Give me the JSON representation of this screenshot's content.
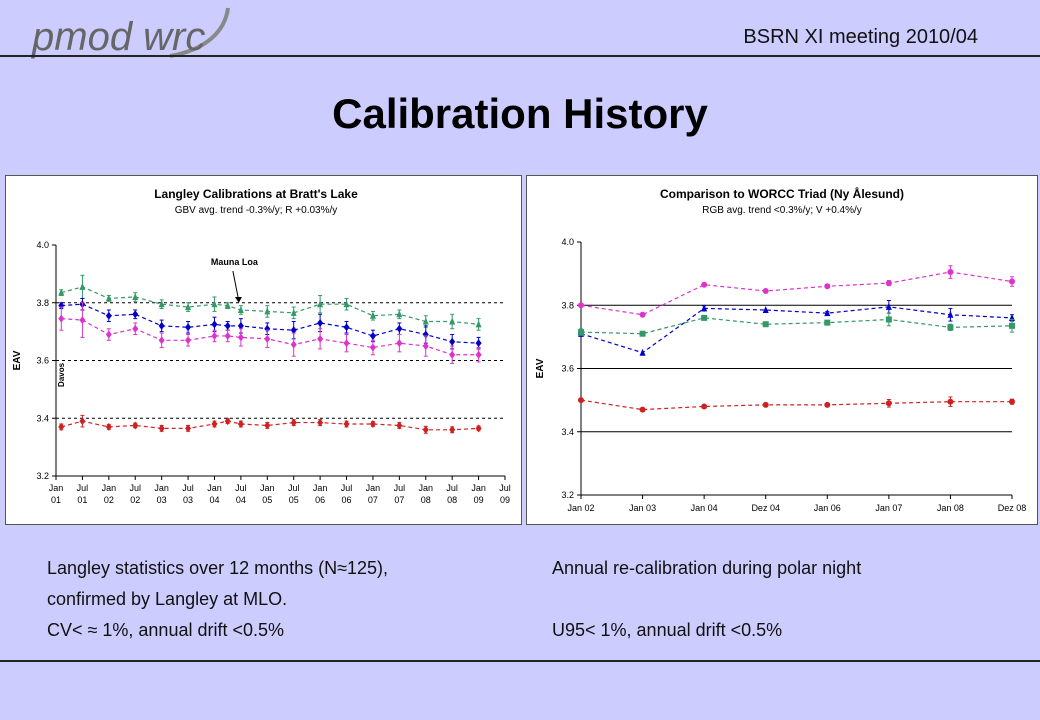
{
  "header": {
    "logo_text": "pmod wrc",
    "meeting": "BSRN XI meeting  2010/04"
  },
  "page_title": "Calibration History",
  "captions": {
    "left": [
      "Langley statistics over 12 months (N≈125),",
      "confirmed by Langley at MLO.",
      "CV< ≈ 1%, annual drift <0.5%"
    ],
    "right": [
      "Annual re-calibration during polar night",
      "U95< 1%, annual drift <0.5%"
    ]
  },
  "chart_data": [
    {
      "type": "line",
      "title": "Langley Calibrations at Bratt's Lake",
      "subtitle": "GBV avg. trend -0.3%/y; R +0.03%/y",
      "ylabel": "EAV",
      "ylim": [
        3.2,
        4.0
      ],
      "yticks": [
        "3.2",
        "3.4",
        "3.6",
        "3.8",
        "4.0"
      ],
      "ytick_values": [
        3.2,
        3.4,
        3.6,
        3.8,
        4.0
      ],
      "gridlines": [
        3.4,
        3.6,
        3.8
      ],
      "x_tick_labels": [
        [
          "Jan",
          "01"
        ],
        [
          "Jul",
          "01"
        ],
        [
          "Jan",
          "02"
        ],
        [
          "Jul",
          "02"
        ],
        [
          "Jan",
          "03"
        ],
        [
          "Jul",
          "03"
        ],
        [
          "Jan",
          "04"
        ],
        [
          "Jul",
          "04"
        ],
        [
          "Jan",
          "05"
        ],
        [
          "Jul",
          "05"
        ],
        [
          "Jan",
          "06"
        ],
        [
          "Jul",
          "06"
        ],
        [
          "Jan",
          "07"
        ],
        [
          "Jul",
          "07"
        ],
        [
          "Jan",
          "08"
        ],
        [
          "Jul",
          "08"
        ],
        [
          "Jan",
          "09"
        ],
        [
          "Jul",
          "09"
        ]
      ],
      "annotations": [
        "Mauna Loa",
        "Davos"
      ],
      "x": [
        0.2,
        1,
        2,
        3,
        4,
        5,
        6,
        6.5,
        7,
        8,
        9,
        10,
        11,
        12,
        13,
        14,
        15,
        16
      ],
      "series": [
        {
          "color": "#339966",
          "marker": "triangle",
          "values": [
            3.835,
            3.855,
            3.815,
            3.82,
            3.795,
            3.785,
            3.795,
            3.79,
            3.775,
            3.77,
            3.765,
            3.795,
            3.795,
            3.755,
            3.76,
            3.735,
            3.735,
            3.725
          ],
          "err": [
            0.01,
            0.04,
            0.01,
            0.015,
            0.015,
            0.015,
            0.025,
            0.01,
            0.015,
            0.02,
            0.02,
            0.03,
            0.02,
            0.015,
            0.015,
            0.02,
            0.025,
            0.02
          ]
        },
        {
          "color": "#0000cc",
          "marker": "diamond",
          "values": [
            3.79,
            3.795,
            3.755,
            3.76,
            3.72,
            3.715,
            3.725,
            3.72,
            3.72,
            3.71,
            3.705,
            3.73,
            3.715,
            3.685,
            3.71,
            3.69,
            3.665,
            3.66
          ],
          "err": [
            0.01,
            0.02,
            0.02,
            0.015,
            0.02,
            0.02,
            0.025,
            0.015,
            0.025,
            0.02,
            0.03,
            0.03,
            0.02,
            0.02,
            0.02,
            0.03,
            0.025,
            0.02
          ]
        },
        {
          "color": "#dd33cc",
          "marker": "diamond",
          "values": [
            3.745,
            3.74,
            3.69,
            3.71,
            3.67,
            3.67,
            3.685,
            3.685,
            3.68,
            3.675,
            3.655,
            3.675,
            3.66,
            3.645,
            3.66,
            3.65,
            3.62,
            3.62
          ],
          "err": [
            0.04,
            0.06,
            0.02,
            0.02,
            0.025,
            0.02,
            0.02,
            0.02,
            0.03,
            0.03,
            0.04,
            0.035,
            0.03,
            0.025,
            0.03,
            0.035,
            0.03,
            0.025
          ]
        },
        {
          "color": "#cc2222",
          "marker": "diamond",
          "values": [
            3.37,
            3.39,
            3.37,
            3.375,
            3.365,
            3.365,
            3.38,
            3.39,
            3.38,
            3.375,
            3.385,
            3.385,
            3.38,
            3.38,
            3.375,
            3.36,
            3.36,
            3.365
          ],
          "err": [
            0.01,
            0.02,
            0.008,
            0.008,
            0.01,
            0.01,
            0.01,
            0.008,
            0.01,
            0.01,
            0.01,
            0.01,
            0.01,
            0.008,
            0.01,
            0.012,
            0.01,
            0.008
          ]
        }
      ]
    },
    {
      "type": "line",
      "title": "Comparison to WORCC Triad (Ny Ålesund)",
      "subtitle": "RGB avg. trend <0.3%/y; V +0.4%/y",
      "ylabel": "EAV",
      "ylim": [
        3.2,
        4.0
      ],
      "yticks": [
        "3.2",
        "3.4",
        "3.6",
        "3.8",
        "4.0"
      ],
      "ytick_values": [
        3.2,
        3.4,
        3.6,
        3.8,
        4.0
      ],
      "gridlines": [
        3.4,
        3.6,
        3.8
      ],
      "x_tick_labels": [
        "Jan 02",
        "Jan 03",
        "Jan 04",
        "Dez 04",
        "Jan 06",
        "Jan 07",
        "Jan 08",
        "Dez 08"
      ],
      "x": [
        0,
        1,
        2,
        3,
        4,
        5,
        6,
        7
      ],
      "series": [
        {
          "color": "#dd33cc",
          "marker": "circle",
          "values": [
            3.8,
            3.77,
            3.865,
            3.845,
            3.86,
            3.87,
            3.905,
            3.875
          ],
          "err": [
            0,
            0,
            0,
            0,
            0,
            0.008,
            0.02,
            0.015
          ]
        },
        {
          "color": "#0000cc",
          "marker": "triangle",
          "values": [
            3.71,
            3.65,
            3.79,
            3.785,
            3.775,
            3.795,
            3.77,
            3.76
          ],
          "err": [
            0.008,
            0,
            0.008,
            0,
            0.005,
            0.02,
            0.02,
            0.01
          ]
        },
        {
          "color": "#339966",
          "marker": "square",
          "values": [
            3.715,
            3.71,
            3.76,
            3.74,
            3.745,
            3.755,
            3.73,
            3.735
          ],
          "err": [
            0.01,
            0,
            0,
            0,
            0,
            0.02,
            0.01,
            0.02
          ]
        },
        {
          "color": "#cc2222",
          "marker": "circle",
          "values": [
            3.5,
            3.47,
            3.48,
            3.485,
            3.485,
            3.49,
            3.495,
            3.495
          ],
          "err": [
            0,
            0,
            0,
            0,
            0,
            0.012,
            0.015,
            0.008
          ]
        }
      ]
    }
  ]
}
